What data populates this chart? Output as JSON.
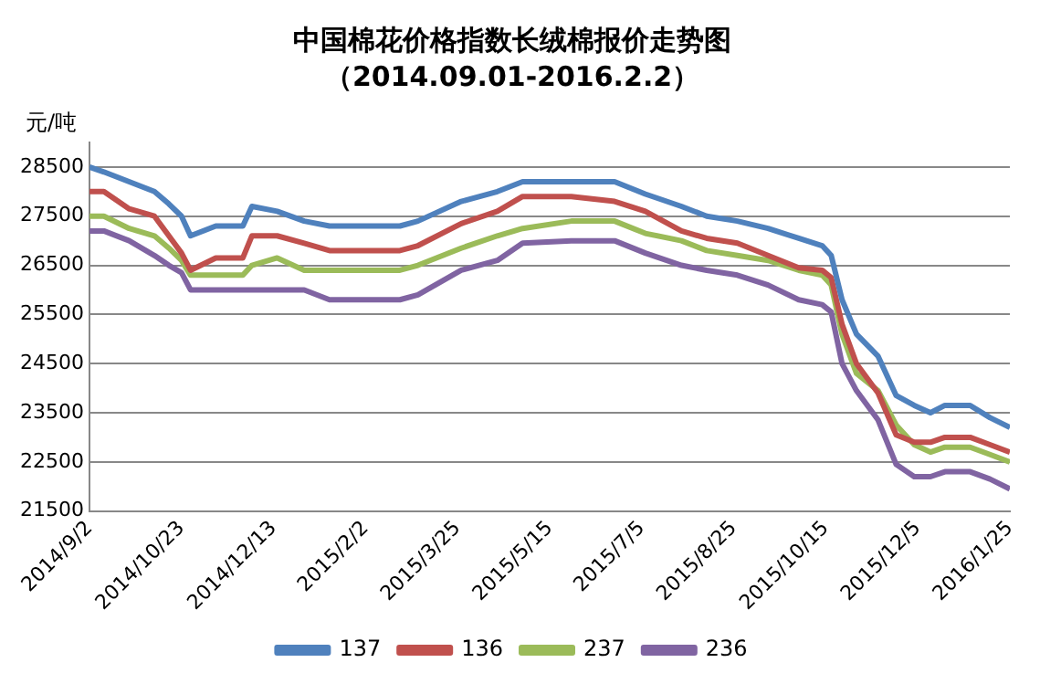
{
  "chart_data": {
    "type": "line",
    "title": "中国棉花价格指数长绒棉报价走势图",
    "subtitle": "（2014.09.01-2016.2.2）",
    "ylabel": "元/吨",
    "x": [
      "2014-09-02",
      "2014-09-10",
      "2014-09-24",
      "2014-10-08",
      "2014-10-16",
      "2014-10-23",
      "2014-10-28",
      "2014-11-11",
      "2014-11-26",
      "2014-12-01",
      "2014-12-15",
      "2014-12-30",
      "2015-01-13",
      "2015-02-21",
      "2015-03-03",
      "2015-03-27",
      "2015-04-16",
      "2015-04-30",
      "2015-05-27",
      "2015-06-20",
      "2015-07-07",
      "2015-07-27",
      "2015-08-10",
      "2015-08-27",
      "2015-09-13",
      "2015-09-30",
      "2015-10-13",
      "2015-10-18",
      "2015-10-24",
      "2015-11-01",
      "2015-11-13",
      "2015-11-23",
      "2015-12-03",
      "2015-12-12",
      "2015-12-20",
      "2016-01-03",
      "2016-01-14",
      "2016-01-25"
    ],
    "series": [
      {
        "name": "137",
        "color": "#4f81bd",
        "values": [
          28500,
          28400,
          28200,
          28000,
          27750,
          27500,
          27100,
          27300,
          27300,
          27700,
          27600,
          27400,
          27300,
          27300,
          27400,
          27800,
          28000,
          28200,
          28200,
          28200,
          27950,
          27700,
          27500,
          27400,
          27250,
          27050,
          26900,
          26700,
          25800,
          25100,
          24650,
          23850,
          23650,
          23500,
          23650,
          23650,
          23400,
          23200
        ]
      },
      {
        "name": "136",
        "color": "#c0504d",
        "values": [
          28000,
          28000,
          27650,
          27500,
          27100,
          26750,
          26400,
          26650,
          26650,
          27100,
          27100,
          26950,
          26800,
          26800,
          26900,
          27350,
          27600,
          27900,
          27900,
          27800,
          27600,
          27200,
          27050,
          26950,
          26700,
          26450,
          26400,
          26250,
          25300,
          24500,
          23900,
          23050,
          22900,
          22900,
          23000,
          23000,
          22850,
          22700
        ]
      },
      {
        "name": "237",
        "color": "#9bbb59",
        "values": [
          27500,
          27500,
          27250,
          27100,
          26850,
          26600,
          26300,
          26300,
          26300,
          26500,
          26650,
          26400,
          26400,
          26400,
          26500,
          26850,
          27100,
          27250,
          27400,
          27400,
          27150,
          27000,
          26800,
          26700,
          26600,
          26400,
          26300,
          26100,
          25100,
          24300,
          23950,
          23250,
          22850,
          22700,
          22800,
          22800,
          22650,
          22500
        ]
      },
      {
        "name": "236",
        "color": "#8064a2",
        "values": [
          27200,
          27200,
          27000,
          26700,
          26500,
          26350,
          26000,
          26000,
          26000,
          26000,
          26000,
          26000,
          25800,
          25800,
          25900,
          26400,
          26600,
          26950,
          27000,
          27000,
          26750,
          26500,
          26400,
          26300,
          26100,
          25800,
          25700,
          25550,
          24500,
          23950,
          23350,
          22450,
          22200,
          22200,
          22300,
          22300,
          22150,
          21950
        ]
      }
    ],
    "xlim": [
      "2014-09-02",
      "2016-01-25"
    ],
    "xticks": [
      {
        "value": "2014-09-02",
        "label": "2014/9/2"
      },
      {
        "value": "2014-10-23",
        "label": "2014/10/23"
      },
      {
        "value": "2014-12-13",
        "label": "2014/12/13"
      },
      {
        "value": "2015-02-02",
        "label": "2015/2/2"
      },
      {
        "value": "2015-03-25",
        "label": "2015/3/25"
      },
      {
        "value": "2015-05-15",
        "label": "2015/5/15"
      },
      {
        "value": "2015-07-05",
        "label": "2015/7/5"
      },
      {
        "value": "2015-08-25",
        "label": "2015/8/25"
      },
      {
        "value": "2015-10-15",
        "label": "2015/10/15"
      },
      {
        "value": "2015-12-05",
        "label": "2015/12/5"
      },
      {
        "value": "2016-01-25",
        "label": "2016/1/25"
      }
    ],
    "ylim": [
      21500,
      29000
    ],
    "yticks": [
      21500,
      22500,
      23500,
      24500,
      25500,
      26500,
      27500,
      28500
    ],
    "grid": "y",
    "legend": "bottom",
    "marker": "none",
    "line_style": "solid"
  }
}
